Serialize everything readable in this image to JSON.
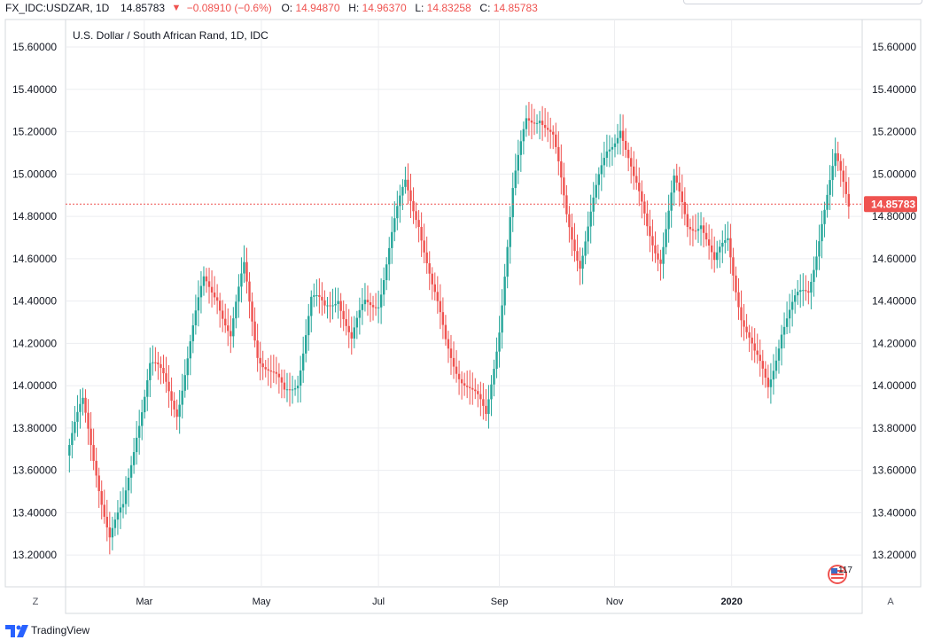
{
  "header": {
    "symbol": "FX_IDC:USDZAR, 1D",
    "last": "14.85783",
    "change": "−0.08910 (−0.6%)",
    "o_label": "O:",
    "o_value": "14.94870",
    "h_label": "H:",
    "h_value": "14.96370",
    "l_label": "L:",
    "l_value": "14.83258",
    "c_label": "C:",
    "c_value": "14.85783"
  },
  "colors": {
    "up": "#26a69a",
    "down": "#ef5350",
    "grid": "#ecedf0",
    "text": "#131722"
  },
  "footer": {
    "logo_text": "TradingView",
    "left_button": "Z",
    "right_button": "A"
  },
  "chart_data": {
    "type": "candlestick",
    "title": "U.S. Dollar / South African Rand, 1D, IDC",
    "ylim": [
      13.05,
      15.73
    ],
    "yticks": [
      13.2,
      13.4,
      13.6,
      13.8,
      14.0,
      14.2,
      14.4,
      14.6,
      14.8,
      15.0,
      15.2,
      15.4,
      15.6
    ],
    "ytick_labels": [
      "13.20000",
      "13.40000",
      "13.60000",
      "13.80000",
      "14.00000",
      "14.20000",
      "14.40000",
      "14.60000",
      "14.80000",
      "15.00000",
      "15.20000",
      "15.40000",
      "15.60000"
    ],
    "x_labels": [
      {
        "label": "Mar",
        "date": "2019-03-01"
      },
      {
        "label": "May",
        "date": "2019-05-01"
      },
      {
        "label": "Jul",
        "date": "2019-07-01"
      },
      {
        "label": "Sep",
        "date": "2019-09-02"
      },
      {
        "label": "Nov",
        "date": "2019-11-01"
      },
      {
        "label": "2020",
        "date": "2020-01-01"
      }
    ],
    "last_price": 14.85783,
    "last_price_label": "14.85783",
    "badge": "117",
    "closes": [
      {
        "date": "2019-01-21",
        "close": 13.72
      },
      {
        "date": "2019-01-28",
        "close": 13.9
      },
      {
        "date": "2019-02-04",
        "close": 13.62
      },
      {
        "date": "2019-02-11",
        "close": 13.28
      },
      {
        "date": "2019-02-18",
        "close": 13.4
      },
      {
        "date": "2019-02-25",
        "close": 13.8
      },
      {
        "date": "2019-03-04",
        "close": 14.1
      },
      {
        "date": "2019-03-11",
        "close": 14.02
      },
      {
        "date": "2019-03-18",
        "close": 13.9
      },
      {
        "date": "2019-03-25",
        "close": 14.2
      },
      {
        "date": "2019-04-01",
        "close": 14.48
      },
      {
        "date": "2019-04-08",
        "close": 14.45
      },
      {
        "date": "2019-04-15",
        "close": 14.22
      },
      {
        "date": "2019-04-22",
        "close": 14.55
      },
      {
        "date": "2019-04-29",
        "close": 14.18
      },
      {
        "date": "2019-05-06",
        "close": 14.05
      },
      {
        "date": "2019-05-13",
        "close": 13.95
      },
      {
        "date": "2019-05-20",
        "close": 14.05
      },
      {
        "date": "2019-05-27",
        "close": 14.4
      },
      {
        "date": "2019-06-03",
        "close": 14.35
      },
      {
        "date": "2019-06-10",
        "close": 14.45
      },
      {
        "date": "2019-06-17",
        "close": 14.2
      },
      {
        "date": "2019-06-24",
        "close": 14.38
      },
      {
        "date": "2019-07-01",
        "close": 14.42
      },
      {
        "date": "2019-07-08",
        "close": 14.7
      },
      {
        "date": "2019-07-15",
        "close": 14.95
      },
      {
        "date": "2019-07-22",
        "close": 14.8
      },
      {
        "date": "2019-07-29",
        "close": 14.45
      },
      {
        "date": "2019-08-05",
        "close": 14.2
      },
      {
        "date": "2019-08-12",
        "close": 14.08
      },
      {
        "date": "2019-08-19",
        "close": 13.95
      },
      {
        "date": "2019-08-26",
        "close": 13.85
      },
      {
        "date": "2019-09-02",
        "close": 14.3
      },
      {
        "date": "2019-09-09",
        "close": 14.9
      },
      {
        "date": "2019-09-16",
        "close": 15.25
      },
      {
        "date": "2019-09-23",
        "close": 15.3
      },
      {
        "date": "2019-09-30",
        "close": 15.15
      },
      {
        "date": "2019-10-07",
        "close": 14.8
      },
      {
        "date": "2019-10-14",
        "close": 14.6
      },
      {
        "date": "2019-10-21",
        "close": 14.85
      },
      {
        "date": "2019-10-28",
        "close": 15.1
      },
      {
        "date": "2019-11-04",
        "close": 15.25
      },
      {
        "date": "2019-11-11",
        "close": 14.95
      },
      {
        "date": "2019-11-18",
        "close": 14.75
      },
      {
        "date": "2019-11-25",
        "close": 14.62
      },
      {
        "date": "2019-12-02",
        "close": 14.95
      },
      {
        "date": "2019-12-09",
        "close": 14.75
      },
      {
        "date": "2019-12-16",
        "close": 14.8
      },
      {
        "date": "2019-12-23",
        "close": 14.55
      },
      {
        "date": "2019-12-30",
        "close": 14.7
      },
      {
        "date": "2020-01-06",
        "close": 14.35
      },
      {
        "date": "2020-01-13",
        "close": 14.12
      },
      {
        "date": "2020-01-20",
        "close": 14.0
      },
      {
        "date": "2020-01-27",
        "close": 14.28
      },
      {
        "date": "2020-02-03",
        "close": 14.38
      },
      {
        "date": "2020-02-10",
        "close": 14.45
      },
      {
        "date": "2020-02-17",
        "close": 14.8
      },
      {
        "date": "2020-02-24",
        "close": 15.05
      },
      {
        "date": "2020-03-02",
        "close": 14.86
      }
    ]
  }
}
